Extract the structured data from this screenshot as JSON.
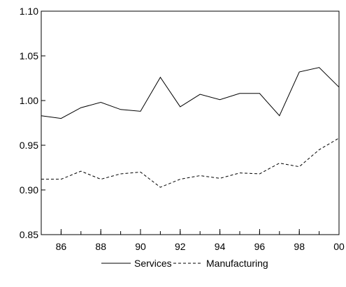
{
  "chart_data": {
    "type": "line",
    "x": [
      1985,
      1986,
      1987,
      1988,
      1989,
      1990,
      1991,
      1992,
      1993,
      1994,
      1995,
      1996,
      1997,
      1998,
      1999,
      2000
    ],
    "x_tick_labels": [
      "86",
      "88",
      "90",
      "92",
      "94",
      "96",
      "98",
      "00"
    ],
    "x_tick_values": [
      1986,
      1988,
      1990,
      1992,
      1994,
      1996,
      1998,
      2000
    ],
    "xlim": [
      1985,
      2000
    ],
    "ylim": [
      0.85,
      1.1
    ],
    "y_ticks": [
      0.85,
      0.9,
      0.95,
      1.0,
      1.05,
      1.1
    ],
    "y_tick_labels": [
      "0.85",
      "0.90",
      "0.95",
      "1.00",
      "1.05",
      "1.10"
    ],
    "grid": false,
    "legend_position": "bottom-center",
    "series": [
      {
        "name": "Services",
        "style": "solid",
        "color": "#000000",
        "values": [
          0.983,
          0.98,
          0.992,
          0.998,
          0.99,
          0.988,
          1.026,
          0.993,
          1.007,
          1.001,
          1.008,
          1.008,
          0.983,
          1.032,
          1.037,
          1.015
        ]
      },
      {
        "name": "Manufacturing",
        "style": "dashed",
        "color": "#000000",
        "values": [
          0.912,
          0.912,
          0.921,
          0.912,
          0.918,
          0.92,
          0.903,
          0.912,
          0.916,
          0.913,
          0.919,
          0.918,
          0.93,
          0.926,
          0.945,
          0.958
        ]
      }
    ]
  }
}
